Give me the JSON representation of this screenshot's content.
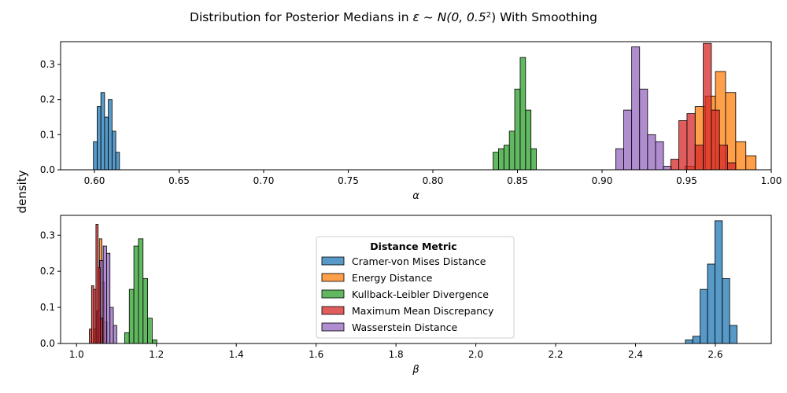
{
  "figure": {
    "title_prefix": "Distribution for Posterior Medians in ",
    "title_math": "ε ~ N(0, 0.5",
    "title_sup": "2",
    "title_suffix": ") With Smoothing",
    "ylabel": "density"
  },
  "legend": {
    "title": "Distance Metric",
    "entries": [
      {
        "name": "Cramer-von Mises Distance",
        "color": "#1f77b4"
      },
      {
        "name": "Energy Distance",
        "color": "#ff7f0e"
      },
      {
        "name": "Kullback-Leibler Divergence",
        "color": "#2ca02c"
      },
      {
        "name": "Maximum Mean Discrepancy",
        "color": "#d62728"
      },
      {
        "name": "Wasserstein Distance",
        "color": "#9467bd"
      }
    ]
  },
  "chart_data": [
    {
      "type": "bar",
      "subtype": "histogram",
      "xlabel": "α",
      "ylabel": "density",
      "xlim": [
        0.58,
        1.0
      ],
      "ylim": [
        0,
        0.365
      ],
      "xticks": [
        "0.60",
        "0.65",
        "0.70",
        "0.75",
        "0.80",
        "0.85",
        "0.90",
        "0.95",
        "1.00"
      ],
      "xtick_values": [
        0.6,
        0.65,
        0.7,
        0.75,
        0.8,
        0.85,
        0.9,
        0.95,
        1.0
      ],
      "yticks": [
        "0.0",
        "0.1",
        "0.2",
        "0.3"
      ],
      "ytick_values": [
        0.0,
        0.1,
        0.2,
        0.3
      ],
      "series": [
        {
          "name": "Energy Distance",
          "color": "#ff7f0e",
          "bin_width": 0.006,
          "bins": [
            [
              0.949,
              0.01
            ],
            [
              0.955,
              0.18
            ],
            [
              0.961,
              0.21
            ],
            [
              0.967,
              0.28
            ],
            [
              0.973,
              0.22
            ],
            [
              0.979,
              0.08
            ],
            [
              0.985,
              0.04
            ]
          ]
        },
        {
          "name": "Kullback-Leibler Divergence",
          "color": "#2ca02c",
          "bin_width": 0.0032,
          "bins": [
            [
              0.8356,
              0.05
            ],
            [
              0.8388,
              0.06
            ],
            [
              0.842,
              0.07
            ],
            [
              0.8452,
              0.11
            ],
            [
              0.8484,
              0.23
            ],
            [
              0.8516,
              0.32
            ],
            [
              0.8548,
              0.17
            ],
            [
              0.858,
              0.06
            ]
          ]
        },
        {
          "name": "Wasserstein Distance",
          "color": "#9467bd",
          "bin_width": 0.0047,
          "bins": [
            [
              0.9081,
              0.06
            ],
            [
              0.9128,
              0.17
            ],
            [
              0.9175,
              0.35
            ],
            [
              0.9222,
              0.23
            ],
            [
              0.9269,
              0.1
            ],
            [
              0.9316,
              0.08
            ],
            [
              0.9363,
              0.01
            ]
          ]
        },
        {
          "name": "Maximum Mean Discrepancy",
          "color": "#d62728",
          "bin_width": 0.0048,
          "bins": [
            [
              0.9406,
              0.03
            ],
            [
              0.9454,
              0.14
            ],
            [
              0.9502,
              0.16
            ],
            [
              0.955,
              0.07
            ],
            [
              0.9598,
              0.36
            ],
            [
              0.9646,
              0.17
            ],
            [
              0.9694,
              0.07
            ],
            [
              0.9742,
              0.02
            ]
          ]
        },
        {
          "name": "Cramer-von Mises Distance",
          "color": "#1f77b4",
          "bin_width": 0.0022,
          "bins": [
            [
              0.5994,
              0.08
            ],
            [
              0.6016,
              0.18
            ],
            [
              0.6038,
              0.22
            ],
            [
              0.606,
              0.15
            ],
            [
              0.6082,
              0.2
            ],
            [
              0.6104,
              0.11
            ],
            [
              0.6126,
              0.05
            ]
          ]
        }
      ]
    },
    {
      "type": "bar",
      "subtype": "histogram",
      "xlabel": "β",
      "ylabel": "density",
      "xlim": [
        0.96,
        2.74
      ],
      "ylim": [
        0,
        0.355
      ],
      "xticks": [
        "1.0",
        "1.2",
        "1.4",
        "1.6",
        "1.8",
        "2.0",
        "2.2",
        "2.4",
        "2.6"
      ],
      "xtick_values": [
        1.0,
        1.2,
        1.4,
        1.6,
        1.8,
        2.0,
        2.2,
        2.4,
        2.6
      ],
      "yticks": [
        "0.0",
        "0.1",
        "0.2",
        "0.3"
      ],
      "ytick_values": [
        0.0,
        0.1,
        0.2,
        0.3
      ],
      "series": [
        {
          "name": "Cramer-von Mises Distance",
          "color": "#1f77b4",
          "bin_width": 0.0185,
          "bins": [
            [
              2.5248,
              0.01
            ],
            [
              2.5433,
              0.02
            ],
            [
              2.5618,
              0.15
            ],
            [
              2.5803,
              0.22
            ],
            [
              2.5988,
              0.34
            ],
            [
              2.6173,
              0.18
            ],
            [
              2.6358,
              0.05
            ]
          ]
        },
        {
          "name": "Kullback-Leibler Divergence",
          "color": "#2ca02c",
          "bin_width": 0.0115,
          "bins": [
            [
              1.1205,
              0.03
            ],
            [
              1.132,
              0.15
            ],
            [
              1.1435,
              0.27
            ],
            [
              1.155,
              0.29
            ],
            [
              1.1665,
              0.18
            ],
            [
              1.178,
              0.07
            ],
            [
              1.1895,
              0.01
            ]
          ]
        },
        {
          "name": "Energy Distance",
          "color": "#ff7f0e",
          "bin_width": 0.0065,
          "bins": [
            [
              1.044,
              0.04
            ],
            [
              1.0505,
              0.09
            ],
            [
              1.057,
              0.29
            ],
            [
              1.0635,
              0.17
            ],
            [
              1.07,
              0.06
            ]
          ]
        },
        {
          "name": "Wasserstein Distance",
          "color": "#9467bd",
          "bin_width": 0.0085,
          "bins": [
            [
              1.0497,
              0.09
            ],
            [
              1.0582,
              0.23
            ],
            [
              1.0667,
              0.27
            ],
            [
              1.0752,
              0.25
            ],
            [
              1.0837,
              0.1
            ],
            [
              1.0922,
              0.05
            ]
          ]
        },
        {
          "name": "Maximum Mean Discrepancy",
          "color": "#d62728",
          "bin_width": 0.0055,
          "bins": [
            [
              1.032,
              0.04
            ],
            [
              1.0375,
              0.16
            ],
            [
              1.043,
              0.15
            ],
            [
              1.0485,
              0.33
            ],
            [
              1.054,
              0.21
            ],
            [
              1.0595,
              0.07
            ]
          ]
        }
      ]
    }
  ]
}
